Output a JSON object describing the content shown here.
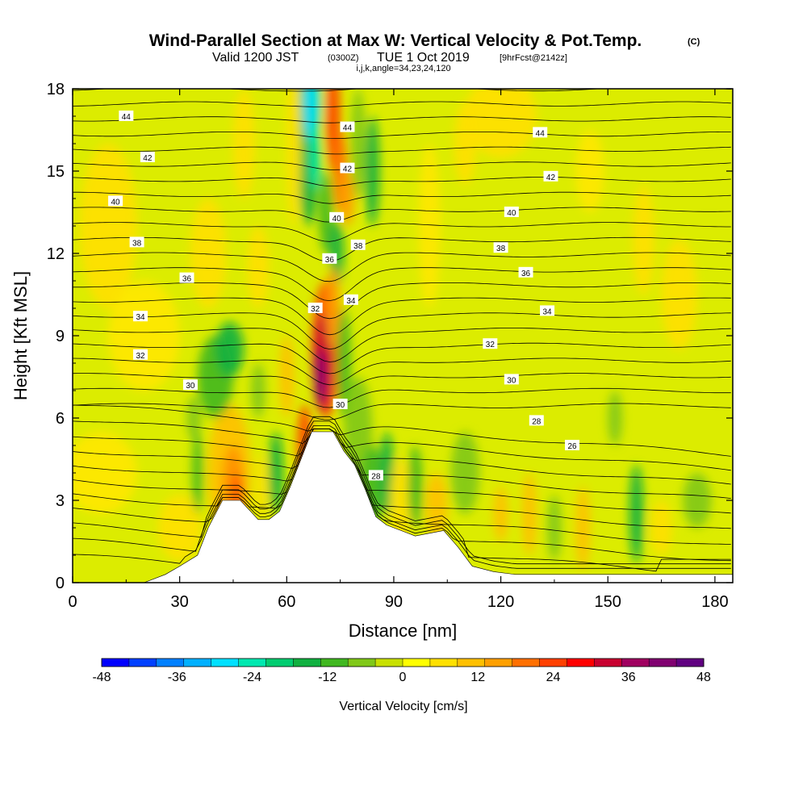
{
  "title": {
    "main": "Wind-Parallel Section at Max W: Vertical Velocity & Pot.Temp.",
    "copyright": "(C)",
    "valid_prefix": "Valid 1200 JST",
    "utc": "(0300Z)",
    "valid_date": "TUE 1 Oct 2019",
    "fcst": "[9hrFcst@2142z]",
    "params": "i,j,k,angle=34,23,24,120"
  },
  "chart_data": {
    "type": "heatmap",
    "xlabel": "Distance [nm]",
    "ylabel": "Height [Kft MSL]",
    "xlim": [
      0,
      185
    ],
    "ylim": [
      0,
      18
    ],
    "x_ticks": [
      0,
      30,
      60,
      90,
      120,
      150,
      180
    ],
    "y_ticks": [
      0,
      3,
      6,
      9,
      12,
      15,
      18
    ],
    "colorbar": {
      "label": "Vertical Velocity [cm/s]",
      "min": -48,
      "max": 48,
      "step": 6,
      "tick_values": [
        -48,
        -36,
        -24,
        -12,
        0,
        12,
        24,
        36,
        48
      ],
      "colors": [
        "#0000ff",
        "#0040ff",
        "#0080ff",
        "#00b0ff",
        "#00e0ff",
        "#00e8b0",
        "#00cc70",
        "#10b040",
        "#40b820",
        "#80c818",
        "#c8e000",
        "#ffff00",
        "#ffe000",
        "#ffc000",
        "#ffa000",
        "#ff7000",
        "#ff4000",
        "#ff0000",
        "#c80030",
        "#a00060",
        "#800070",
        "#600080"
      ]
    },
    "terrain": [
      [
        0,
        0
      ],
      [
        20,
        0
      ],
      [
        26,
        0.3
      ],
      [
        30,
        0.6
      ],
      [
        35,
        1
      ],
      [
        38,
        2
      ],
      [
        42,
        3
      ],
      [
        47,
        3
      ],
      [
        52,
        2.3
      ],
      [
        55,
        2.3
      ],
      [
        58,
        2.6
      ],
      [
        61,
        3.5
      ],
      [
        64,
        4.5
      ],
      [
        67,
        5.5
      ],
      [
        70,
        5.5
      ],
      [
        73,
        5.5
      ],
      [
        76,
        4.8
      ],
      [
        79,
        4.3
      ],
      [
        82,
        3.4
      ],
      [
        85,
        2.4
      ],
      [
        88,
        2.1
      ],
      [
        92,
        1.9
      ],
      [
        96,
        1.7
      ],
      [
        100,
        1.8
      ],
      [
        104,
        1.9
      ],
      [
        108,
        1.3
      ],
      [
        112,
        0.6
      ],
      [
        118,
        0.4
      ],
      [
        124,
        0.3
      ],
      [
        185,
        0.3
      ]
    ],
    "theta_contour_labels": [
      {
        "value": "44",
        "x": 15,
        "y": 17.0
      },
      {
        "value": "44",
        "x": 77,
        "y": 16.6
      },
      {
        "value": "44",
        "x": 131,
        "y": 16.4
      },
      {
        "value": "42",
        "x": 21,
        "y": 15.5
      },
      {
        "value": "42",
        "x": 77,
        "y": 15.1
      },
      {
        "value": "42",
        "x": 134,
        "y": 14.8
      },
      {
        "value": "40",
        "x": 12,
        "y": 13.9
      },
      {
        "value": "40",
        "x": 74,
        "y": 13.3
      },
      {
        "value": "40",
        "x": 123,
        "y": 13.5
      },
      {
        "value": "38",
        "x": 18,
        "y": 12.4
      },
      {
        "value": "38",
        "x": 80,
        "y": 12.3
      },
      {
        "value": "38",
        "x": 120,
        "y": 12.2
      },
      {
        "value": "36",
        "x": 32,
        "y": 11.1
      },
      {
        "value": "36",
        "x": 72,
        "y": 11.8
      },
      {
        "value": "36",
        "x": 127,
        "y": 11.3
      },
      {
        "value": "34",
        "x": 19,
        "y": 9.7
      },
      {
        "value": "34",
        "x": 78,
        "y": 10.3
      },
      {
        "value": "34",
        "x": 133,
        "y": 9.9
      },
      {
        "value": "32",
        "x": 19,
        "y": 8.3
      },
      {
        "value": "32",
        "x": 68,
        "y": 10.0
      },
      {
        "value": "32",
        "x": 117,
        "y": 8.7
      },
      {
        "value": "30",
        "x": 33,
        "y": 7.2
      },
      {
        "value": "30",
        "x": 75,
        "y": 6.5
      },
      {
        "value": "30",
        "x": 123,
        "y": 7.4
      },
      {
        "value": "28",
        "x": 85,
        "y": 3.9
      },
      {
        "value": "28",
        "x": 130,
        "y": 5.9
      },
      {
        "value": "26",
        "x": 140,
        "y": 5.0
      }
    ]
  }
}
